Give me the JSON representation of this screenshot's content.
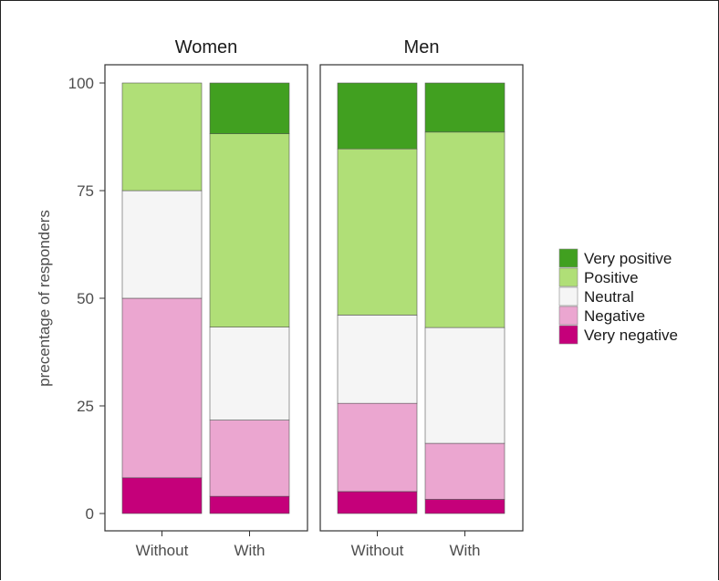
{
  "chart_data": {
    "type": "bar",
    "stacked": true,
    "ylabel": "precentage of responders",
    "ylim": [
      0,
      100
    ],
    "yticks": [
      0,
      25,
      50,
      75,
      100
    ],
    "categories": [
      "Without",
      "With"
    ],
    "panels": [
      {
        "title": "Women",
        "series": [
          {
            "name": "Very negative",
            "values": [
              8.3,
              4.0
            ]
          },
          {
            "name": "Negative",
            "values": [
              41.7,
              17.7
            ]
          },
          {
            "name": "Neutral",
            "values": [
              25.0,
              21.6
            ]
          },
          {
            "name": "Positive",
            "values": [
              25.0,
              44.9
            ]
          },
          {
            "name": "Very positive",
            "values": [
              0.0,
              11.8
            ]
          }
        ]
      },
      {
        "title": "Men",
        "series": [
          {
            "name": "Very negative",
            "values": [
              5.1,
              3.3
            ]
          },
          {
            "name": "Negative",
            "values": [
              20.5,
              13.0
            ]
          },
          {
            "name": "Neutral",
            "values": [
              20.5,
              26.9
            ]
          },
          {
            "name": "Positive",
            "values": [
              38.6,
              45.4
            ]
          },
          {
            "name": "Very positive",
            "values": [
              15.3,
              11.4
            ]
          }
        ]
      }
    ],
    "legend": {
      "placement": "right",
      "items": [
        "Very positive",
        "Positive",
        "Neutral",
        "Negative",
        "Very negative"
      ]
    },
    "colors": {
      "Very positive": "#41a020",
      "Positive": "#b0df77",
      "Neutral": "#f5f5f5",
      "Negative": "#eba6d0",
      "Very negative": "#c5007a"
    },
    "grid": false
  }
}
